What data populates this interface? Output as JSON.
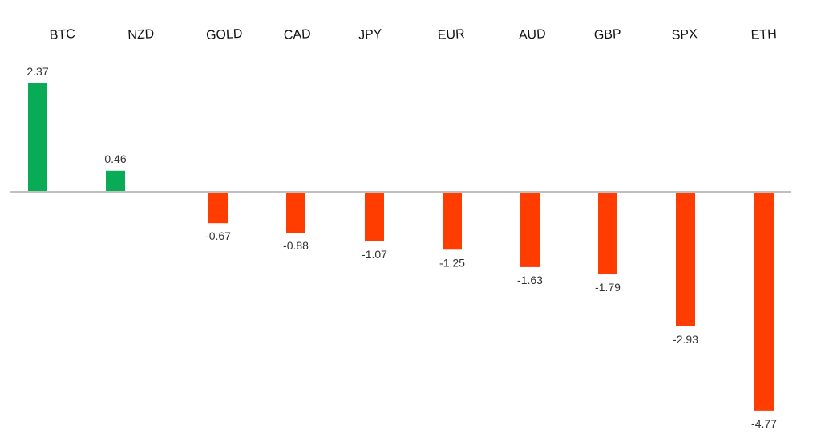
{
  "chart_data": {
    "type": "bar",
    "title": "",
    "xlabel": "",
    "ylabel": "",
    "categories": [
      "BTC",
      "NZD",
      "GOLD",
      "CAD",
      "JPY",
      "EUR",
      "AUD",
      "GBP",
      "SPX",
      "ETH"
    ],
    "values": [
      2.37,
      0.46,
      -0.67,
      -0.88,
      -1.07,
      -1.25,
      -1.63,
      -1.79,
      -2.93,
      -4.77
    ],
    "value_labels": [
      "2.37",
      "0.46",
      "-0.67",
      "-0.88",
      "-1.07",
      "-1.25",
      "-1.63",
      "-1.79",
      "-2.93",
      "-4.77"
    ],
    "ylim": [
      -4.77,
      2.37
    ],
    "category_labels_position": "top",
    "grid": false,
    "legend": "none",
    "colors": {
      "positive": "#0aab56",
      "negative": "#ff3d00",
      "zero_line": "#c0c0c0"
    }
  }
}
